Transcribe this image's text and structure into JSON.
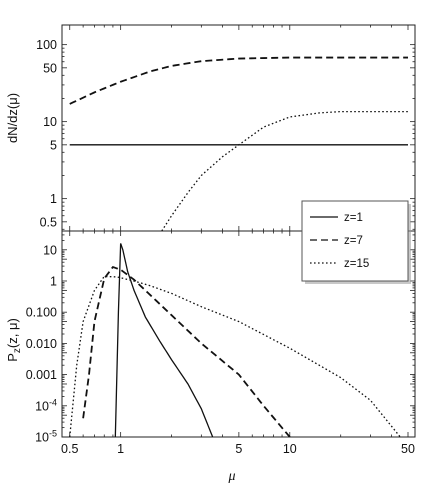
{
  "chart_data": [
    {
      "type": "line",
      "panel": "top",
      "ylabel": "dN/dz(μ)",
      "yscale": "log",
      "xscale": "log",
      "xlim": [
        0.45,
        55
      ],
      "ylim": [
        0.38,
        180
      ],
      "yticks": [
        {
          "value": 0.5,
          "label": "0.5"
        },
        {
          "value": 1,
          "label": "1"
        },
        {
          "value": 5,
          "label": "5"
        },
        {
          "value": 10,
          "label": "10"
        },
        {
          "value": 50,
          "label": "50"
        },
        {
          "value": 100,
          "label": "100"
        }
      ],
      "series": [
        {
          "name": "z=1",
          "style": "solid",
          "points": [
            [
              0.5,
              5.0
            ],
            [
              1,
              5.0
            ],
            [
              2,
              5.0
            ],
            [
              5,
              5.0
            ],
            [
              10,
              5.0
            ],
            [
              20,
              5.0
            ],
            [
              50,
              5.0
            ]
          ]
        },
        {
          "name": "z=7",
          "style": "dashed",
          "points": [
            [
              0.5,
              17
            ],
            [
              0.7,
              24
            ],
            [
              1,
              33
            ],
            [
              1.5,
              45
            ],
            [
              2,
              53
            ],
            [
              3,
              61
            ],
            [
              5,
              66
            ],
            [
              10,
              68
            ],
            [
              20,
              68
            ],
            [
              50,
              68
            ]
          ]
        },
        {
          "name": "z=15",
          "style": "dotted",
          "points": [
            [
              1.75,
              0.38
            ],
            [
              2,
              0.6
            ],
            [
              2.5,
              1.2
            ],
            [
              3,
              2
            ],
            [
              4,
              3.5
            ],
            [
              5,
              5
            ],
            [
              7,
              8.5
            ],
            [
              10,
              11.5
            ],
            [
              15,
              13
            ],
            [
              20,
              13.5
            ],
            [
              50,
              13.5
            ]
          ]
        }
      ]
    },
    {
      "type": "line",
      "panel": "bottom",
      "ylabel": "P_z(z, μ)",
      "yscale": "log",
      "xscale": "log",
      "xlabel": "μ",
      "xlim": [
        0.45,
        55
      ],
      "ylim": [
        1e-05,
        40
      ],
      "xticks": [
        {
          "value": 0.5,
          "label": "0.5"
        },
        {
          "value": 1,
          "label": "1"
        },
        {
          "value": 5,
          "label": "5"
        },
        {
          "value": 10,
          "label": "10"
        },
        {
          "value": 50,
          "label": "50"
        }
      ],
      "yticks": [
        {
          "value": 1e-05,
          "label": "10",
          "exp": "-5"
        },
        {
          "value": 0.0001,
          "label": "10",
          "exp": "-4"
        },
        {
          "value": 0.001,
          "label": "0.001"
        },
        {
          "value": 0.01,
          "label": "0.010"
        },
        {
          "value": 0.1,
          "label": "0.100"
        },
        {
          "value": 1,
          "label": "1"
        },
        {
          "value": 10,
          "label": "10"
        }
      ],
      "series": [
        {
          "name": "z=1",
          "style": "solid",
          "points": [
            [
              0.93,
              1e-05
            ],
            [
              0.97,
              0.1
            ],
            [
              1.0,
              16
            ],
            [
              1.03,
              10
            ],
            [
              1.1,
              2.0
            ],
            [
              1.2,
              0.5
            ],
            [
              1.4,
              0.07
            ],
            [
              1.7,
              0.012
            ],
            [
              2,
              0.003
            ],
            [
              2.5,
              0.0005
            ],
            [
              3,
              8e-05
            ],
            [
              3.5,
              1e-05
            ]
          ]
        },
        {
          "name": "z=7",
          "style": "dashed",
          "points": [
            [
              0.6,
              4e-05
            ],
            [
              0.65,
              0.001
            ],
            [
              0.7,
              0.05
            ],
            [
              0.8,
              1.2
            ],
            [
              0.9,
              2.8
            ],
            [
              1.0,
              2.3
            ],
            [
              1.2,
              1.1
            ],
            [
              1.5,
              0.35
            ],
            [
              2,
              0.08
            ],
            [
              3,
              0.01
            ],
            [
              5,
              0.001
            ],
            [
              7,
              0.0001
            ],
            [
              10,
              1e-05
            ]
          ]
        },
        {
          "name": "z=15",
          "style": "dotted",
          "points": [
            [
              0.5,
              1e-05
            ],
            [
              0.55,
              0.002
            ],
            [
              0.6,
              0.05
            ],
            [
              0.7,
              0.5
            ],
            [
              0.8,
              1.4
            ],
            [
              0.95,
              1.35
            ],
            [
              1.2,
              1.0
            ],
            [
              1.5,
              0.7
            ],
            [
              2,
              0.4
            ],
            [
              3,
              0.15
            ],
            [
              5,
              0.05
            ],
            [
              10,
              0.007
            ],
            [
              20,
              0.0008
            ],
            [
              30,
              0.00015
            ],
            [
              45,
              1e-05
            ]
          ]
        }
      ]
    }
  ],
  "legend": {
    "items": [
      {
        "label": "z=1",
        "style": "solid"
      },
      {
        "label": "z=7",
        "style": "dashed"
      },
      {
        "label": "z=15",
        "style": "dotted"
      }
    ]
  }
}
